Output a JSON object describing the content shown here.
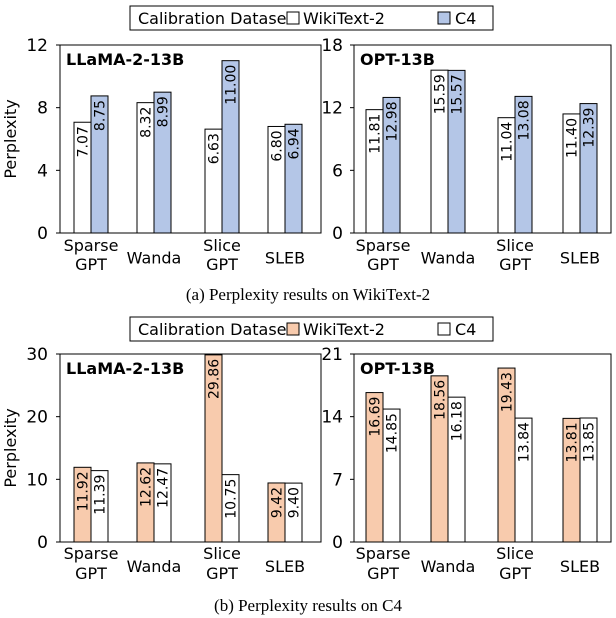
{
  "legends": [
    {
      "label": "Calibration Dataset:",
      "items": [
        {
          "label": "WikiText-2",
          "color": "#ffffff"
        },
        {
          "label": "C4",
          "color": "#b4c6e7"
        }
      ]
    },
    {
      "label": "Calibration Dataset:",
      "items": [
        {
          "label": "WikiText-2",
          "color": "#f8cbad"
        },
        {
          "label": "C4",
          "color": "#ffffff"
        }
      ]
    }
  ],
  "captions": [
    "(a) Perplexity results on WikiText-2",
    "(b) Perplexity results on C4"
  ],
  "chart_data": [
    {
      "type": "bar",
      "title": "LLaMA-2-13B",
      "ylabel": "Perplexity",
      "ylim": [
        0,
        12
      ],
      "yticks": [
        "0",
        "4",
        "8",
        "12"
      ],
      "categories": [
        "Sparse\nGPT",
        "Wanda",
        "Slice\nGPT",
        "SLEB"
      ],
      "series": [
        {
          "name": "WikiText-2",
          "values": [
            7.07,
            8.32,
            6.63,
            6.8
          ],
          "labels": [
            "7.07",
            "8.32",
            "6.63",
            "6.80"
          ],
          "color": "#ffffff"
        },
        {
          "name": "C4",
          "values": [
            8.75,
            8.99,
            11.0,
            6.94
          ],
          "labels": [
            "8.75",
            "8.99",
            "11.00",
            "6.94"
          ],
          "color": "#b4c6e7"
        }
      ]
    },
    {
      "type": "bar",
      "title": "OPT-13B",
      "ylabel": "",
      "ylim": [
        0,
        18
      ],
      "yticks": [
        "0",
        "6",
        "12",
        "18"
      ],
      "categories": [
        "Sparse\nGPT",
        "Wanda",
        "Slice\nGPT",
        "SLEB"
      ],
      "series": [
        {
          "name": "WikiText-2",
          "values": [
            11.81,
            15.59,
            11.04,
            11.4
          ],
          "labels": [
            "11.81",
            "15.59",
            "11.04",
            "11.40"
          ],
          "color": "#ffffff"
        },
        {
          "name": "C4",
          "values": [
            12.98,
            15.57,
            13.08,
            12.39
          ],
          "labels": [
            "12.98",
            "15.57",
            "13.08",
            "12.39"
          ],
          "color": "#b4c6e7"
        }
      ]
    },
    {
      "type": "bar",
      "title": "LLaMA-2-13B",
      "ylabel": "Perplexity",
      "ylim": [
        0,
        30
      ],
      "yticks": [
        "0",
        "10",
        "20",
        "30"
      ],
      "categories": [
        "Sparse\nGPT",
        "Wanda",
        "Slice\nGPT",
        "SLEB"
      ],
      "series": [
        {
          "name": "WikiText-2",
          "values": [
            11.92,
            12.62,
            29.86,
            9.42
          ],
          "labels": [
            "11.92",
            "12.62",
            "29.86",
            "9.42"
          ],
          "color": "#f8cbad"
        },
        {
          "name": "C4",
          "values": [
            11.39,
            12.47,
            10.75,
            9.4
          ],
          "labels": [
            "11.39",
            "12.47",
            "10.75",
            "9.40"
          ],
          "color": "#ffffff"
        }
      ]
    },
    {
      "type": "bar",
      "title": "OPT-13B",
      "ylabel": "",
      "ylim": [
        0,
        21
      ],
      "yticks": [
        "0",
        "7",
        "14",
        "21"
      ],
      "categories": [
        "Sparse\nGPT",
        "Wanda",
        "Slice\nGPT",
        "SLEB"
      ],
      "series": [
        {
          "name": "WikiText-2",
          "values": [
            16.69,
            18.56,
            19.43,
            13.81
          ],
          "labels": [
            "16.69",
            "18.56",
            "19.43",
            "13.81"
          ],
          "color": "#f8cbad"
        },
        {
          "name": "C4",
          "values": [
            14.85,
            16.18,
            13.84,
            13.85
          ],
          "labels": [
            "14.85",
            "16.18",
            "13.84",
            "13.85"
          ],
          "color": "#ffffff"
        }
      ]
    }
  ]
}
